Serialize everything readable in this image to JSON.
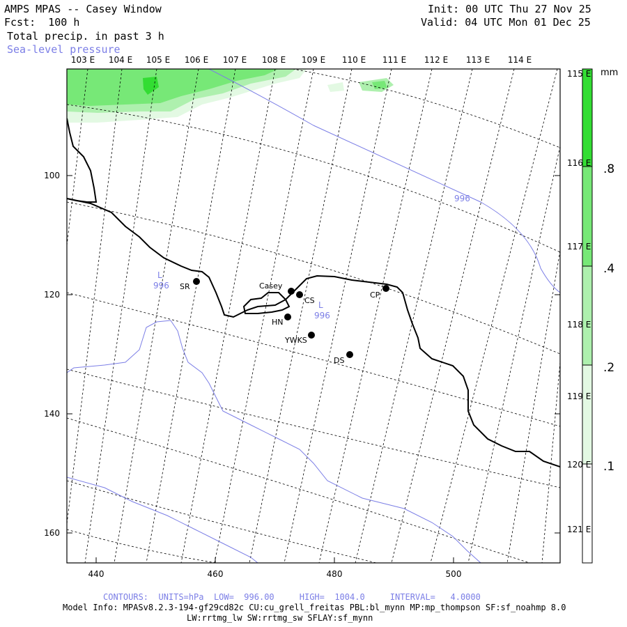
{
  "header": {
    "model": "AMPS MPAS -- Casey Window",
    "fcst": "Fcst:  100 h",
    "field": "Total precip. in past 3 h",
    "overlay": "Sea-level pressure",
    "init": "Init: 00 UTC Thu 27 Nov 25",
    "valid": "Valid: 04 UTC Mon 01 Dec 25"
  },
  "axes": {
    "x_ticks": [
      "440",
      "460",
      "480",
      "500"
    ],
    "y_ticks": [
      "100",
      "120",
      "140",
      "160"
    ],
    "lon_top": [
      "103 E",
      "104 E",
      "105 E",
      "106 E",
      "107 E",
      "108 E",
      "109 E",
      "110 E",
      "111 E",
      "112 E",
      "113 E",
      "114 E"
    ],
    "lon_right": [
      "115 E",
      "116 E",
      "117 E",
      "118 E",
      "119 E",
      "120 E",
      "121 E"
    ]
  },
  "colorbar": {
    "unit": "mm",
    "labels": [
      ".8",
      ".4",
      ".2",
      ".1"
    ],
    "colors": [
      "#33dd33",
      "#77e877",
      "#aef0ae",
      "#e3f9e3",
      "#ffffff"
    ]
  },
  "stations": [
    {
      "code": "SR"
    },
    {
      "code": "Casey"
    },
    {
      "code": "CS"
    },
    {
      "code": "HN"
    },
    {
      "code": "YWKS"
    },
    {
      "code": "DS"
    },
    {
      "code": "CP"
    }
  ],
  "pressure_labels": {
    "low_symbol": "L",
    "values": [
      "996",
      "996",
      "996"
    ]
  },
  "footer": {
    "contours": "CONTOURS:  UNITS=hPa  LOW=  996.00     HIGH=  1004.0     INTERVAL=   4.0000",
    "model_info": "Model Info: MPASv8.2.3-194-gf29cd82c CU:cu_grell_freitas PBL:bl_mynn MP:mp_thompson SF:sf_noahmp 8.0",
    "model_info2": "LW:rrtmg_lw SW:rrtmg_sw SFLAY:sf_mynn"
  }
}
